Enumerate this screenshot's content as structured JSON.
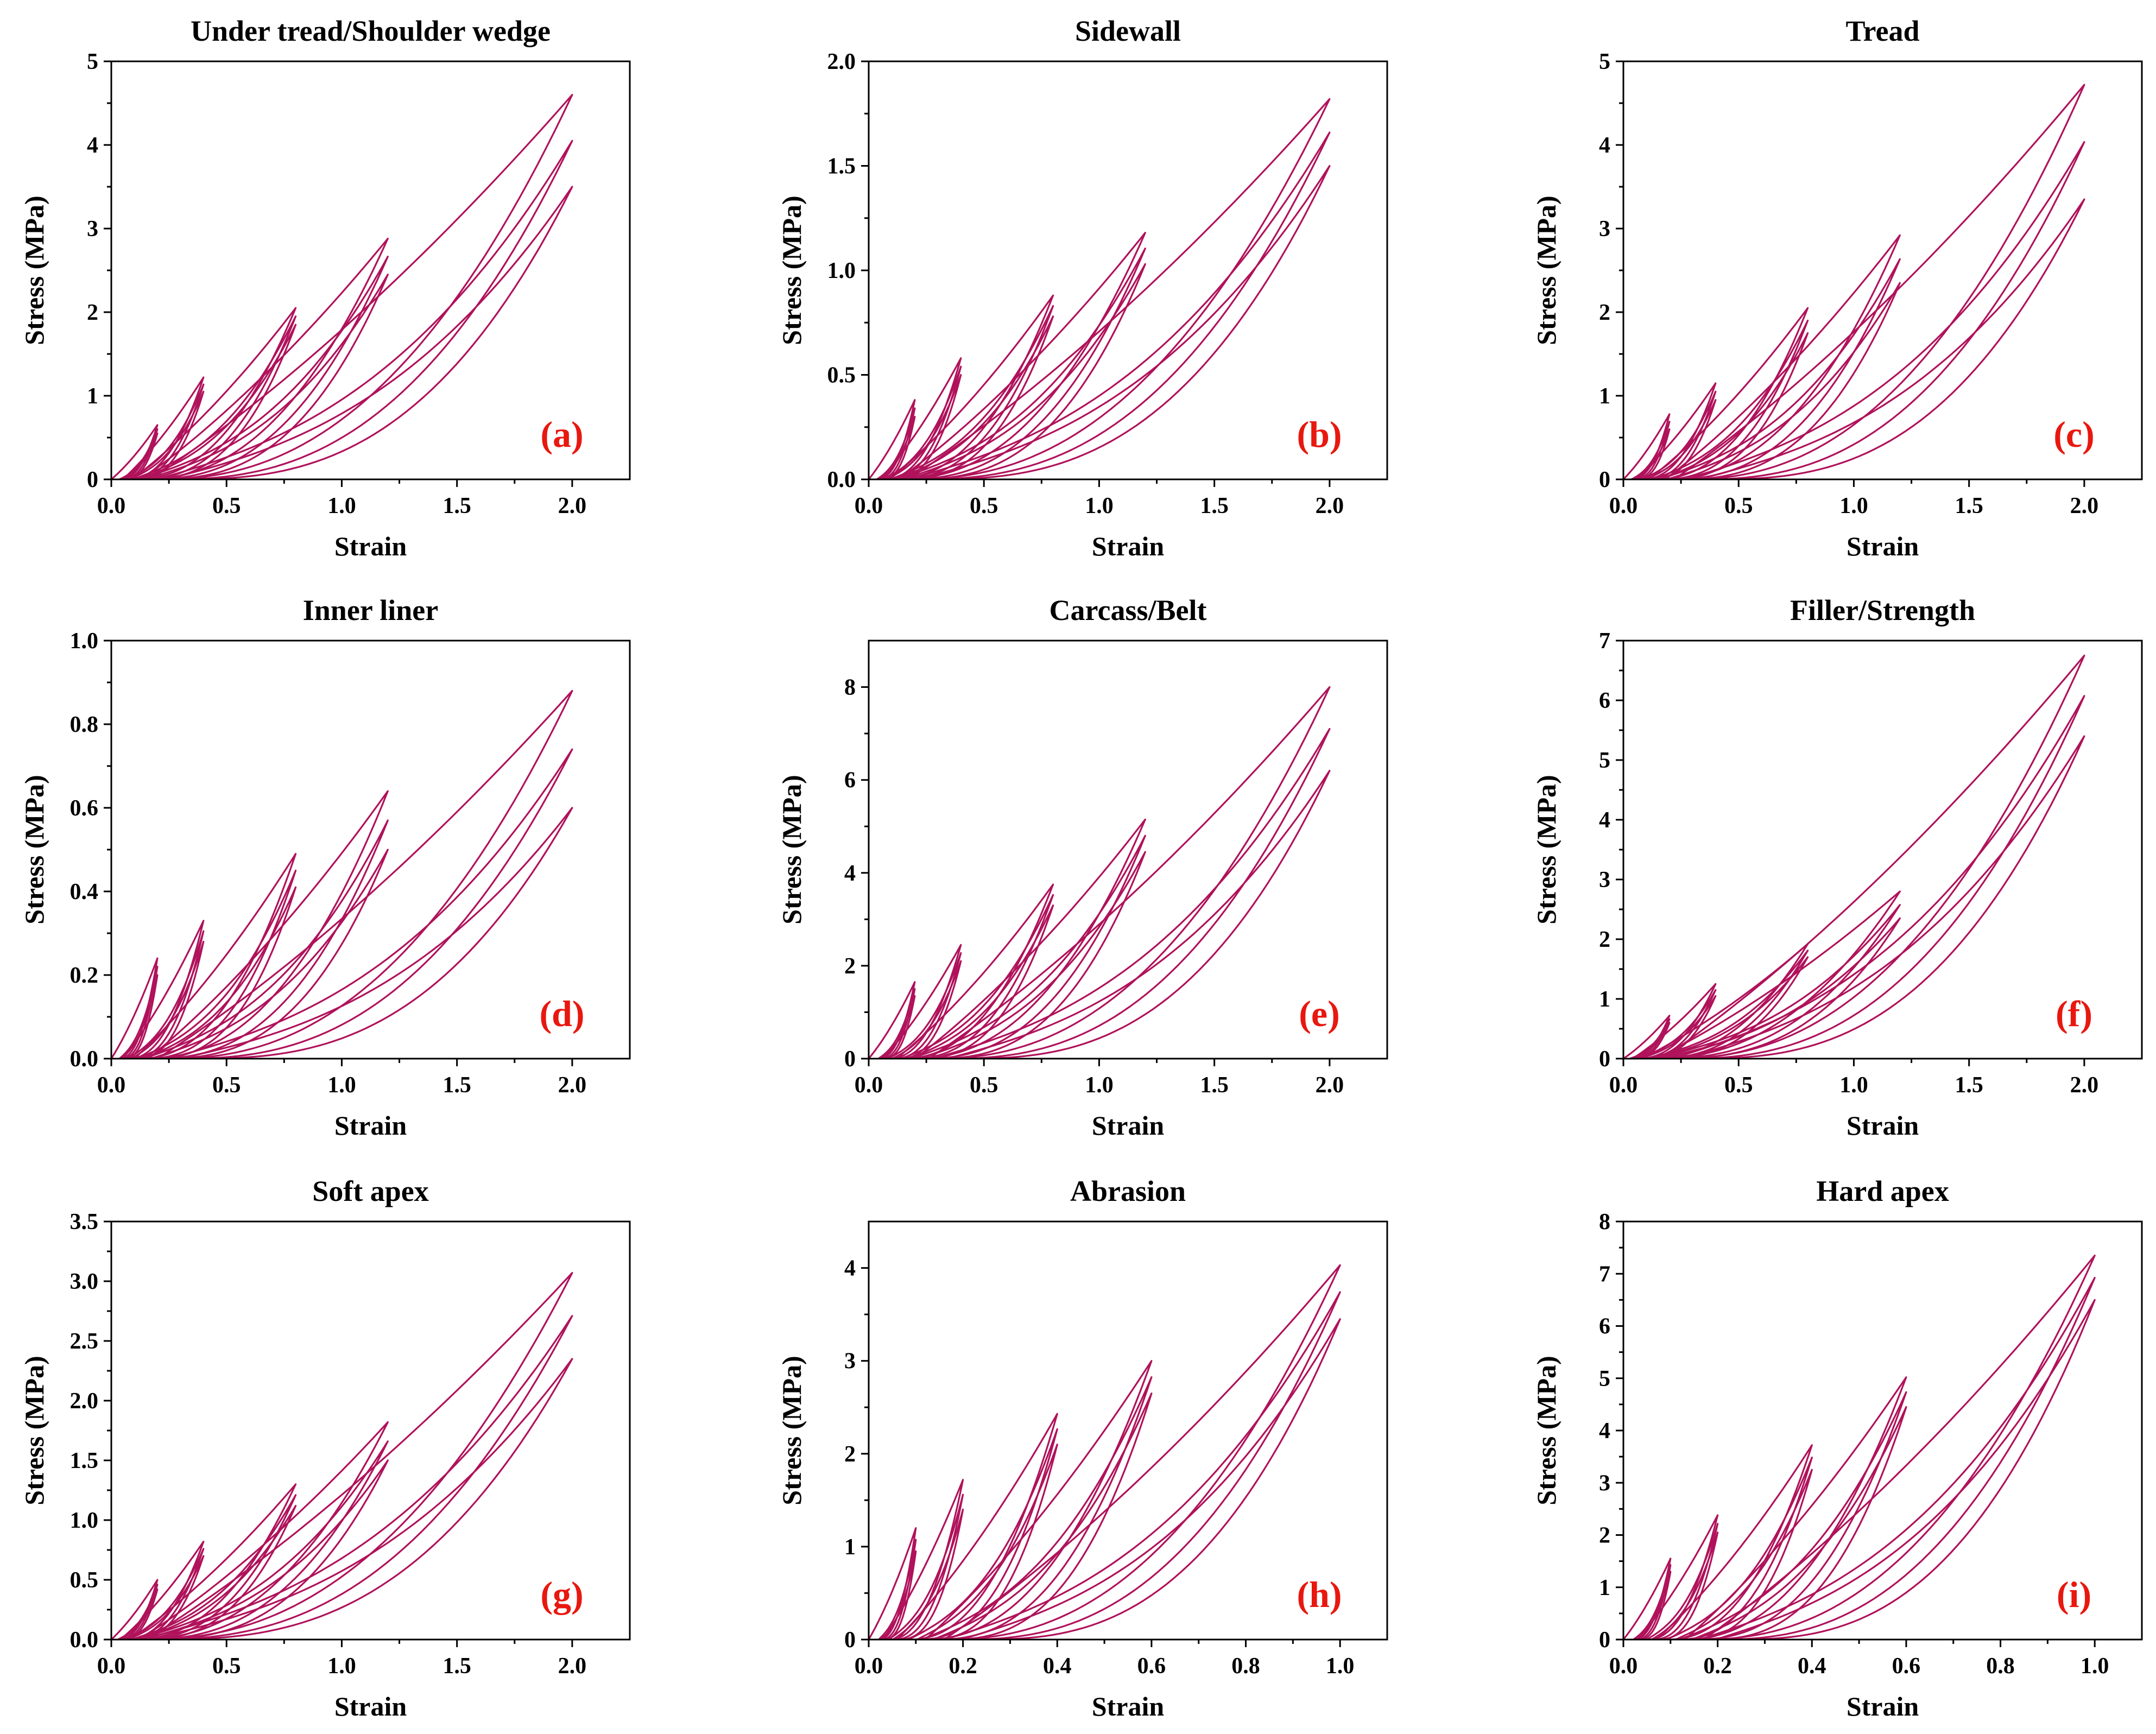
{
  "figure": {
    "curve_color": "#B0125B",
    "panel_label_color": "#E8180F"
  },
  "chart_data": [
    {
      "type": "line",
      "panel": "(a)",
      "title": "Under tread/Shoulder wedge",
      "xlabel": "Strain",
      "ylabel": "Stress (MPa)",
      "xlim": [
        0,
        2.25
      ],
      "ylim": [
        0,
        5
      ],
      "xticks": [
        0,
        0.5,
        1.0,
        1.5,
        2.0
      ],
      "xtick_labels": [
        "0.0",
        "0.5",
        "1.0",
        "1.5",
        "2.0"
      ],
      "yticks": [
        0,
        1,
        2,
        3,
        4,
        5
      ],
      "ytick_labels": [
        "0",
        "1",
        "2",
        "3",
        "4",
        "5"
      ],
      "loops": [
        {
          "strain_max": 0.2,
          "peak_first": 0.65,
          "peak_last": 0.55,
          "residual": 0.05
        },
        {
          "strain_max": 0.4,
          "peak_first": 1.22,
          "peak_last": 1.05,
          "residual": 0.09
        },
        {
          "strain_max": 0.8,
          "peak_first": 2.05,
          "peak_last": 1.85,
          "residual": 0.13
        },
        {
          "strain_max": 1.2,
          "peak_first": 2.88,
          "peak_last": 2.45,
          "residual": 0.17
        },
        {
          "strain_max": 2.0,
          "peak_first": 4.6,
          "peak_last": 3.5,
          "residual": 0.28
        }
      ]
    },
    {
      "type": "line",
      "panel": "(b)",
      "title": "Sidewall",
      "xlabel": "Strain",
      "ylabel": "Stress (MPa)",
      "xlim": [
        0,
        2.25
      ],
      "ylim": [
        0,
        2.0
      ],
      "xticks": [
        0,
        0.5,
        1.0,
        1.5,
        2.0
      ],
      "xtick_labels": [
        "0.0",
        "0.5",
        "1.0",
        "1.5",
        "2.0"
      ],
      "yticks": [
        0,
        0.5,
        1.0,
        1.5,
        2.0
      ],
      "ytick_labels": [
        "0.0",
        "0.5",
        "1.0",
        "1.5",
        "2.0"
      ],
      "loops": [
        {
          "strain_max": 0.2,
          "peak_first": 0.38,
          "peak_last": 0.3,
          "residual": 0.05
        },
        {
          "strain_max": 0.4,
          "peak_first": 0.58,
          "peak_last": 0.5,
          "residual": 0.09
        },
        {
          "strain_max": 0.8,
          "peak_first": 0.88,
          "peak_last": 0.78,
          "residual": 0.13
        },
        {
          "strain_max": 1.2,
          "peak_first": 1.18,
          "peak_last": 1.03,
          "residual": 0.17
        },
        {
          "strain_max": 2.0,
          "peak_first": 1.82,
          "peak_last": 1.5,
          "residual": 0.25
        }
      ]
    },
    {
      "type": "line",
      "panel": "(c)",
      "title": "Tread",
      "xlabel": "Strain",
      "ylabel": "Stress (MPa)",
      "xlim": [
        0,
        2.25
      ],
      "ylim": [
        0,
        5
      ],
      "xticks": [
        0,
        0.5,
        1.0,
        1.5,
        2.0
      ],
      "xtick_labels": [
        "0.0",
        "0.5",
        "1.0",
        "1.5",
        "2.0"
      ],
      "yticks": [
        0,
        1,
        2,
        3,
        4,
        5
      ],
      "ytick_labels": [
        "0",
        "1",
        "2",
        "3",
        "4",
        "5"
      ],
      "loops": [
        {
          "strain_max": 0.2,
          "peak_first": 0.78,
          "peak_last": 0.6,
          "residual": 0.05
        },
        {
          "strain_max": 0.4,
          "peak_first": 1.15,
          "peak_last": 0.95,
          "residual": 0.11
        },
        {
          "strain_max": 0.8,
          "peak_first": 2.05,
          "peak_last": 1.75,
          "residual": 0.18
        },
        {
          "strain_max": 1.2,
          "peak_first": 2.92,
          "peak_last": 2.35,
          "residual": 0.22
        },
        {
          "strain_max": 2.0,
          "peak_first": 4.72,
          "peak_last": 3.35,
          "residual": 0.38
        }
      ]
    },
    {
      "type": "line",
      "panel": "(d)",
      "title": "Inner liner",
      "xlabel": "Strain",
      "ylabel": "Stress (MPa)",
      "xlim": [
        0,
        2.25
      ],
      "ylim": [
        0,
        1.0
      ],
      "xticks": [
        0,
        0.5,
        1.0,
        1.5,
        2.0
      ],
      "xtick_labels": [
        "0.0",
        "0.5",
        "1.0",
        "1.5",
        "2.0"
      ],
      "yticks": [
        0,
        0.2,
        0.4,
        0.6,
        0.8,
        1.0
      ],
      "ytick_labels": [
        "0.0",
        "0.2",
        "0.4",
        "0.6",
        "0.8",
        "1.0"
      ],
      "loops": [
        {
          "strain_max": 0.2,
          "peak_first": 0.24,
          "peak_last": 0.2,
          "residual": 0.05
        },
        {
          "strain_max": 0.4,
          "peak_first": 0.33,
          "peak_last": 0.28,
          "residual": 0.1
        },
        {
          "strain_max": 0.8,
          "peak_first": 0.49,
          "peak_last": 0.41,
          "residual": 0.16
        },
        {
          "strain_max": 1.2,
          "peak_first": 0.64,
          "peak_last": 0.5,
          "residual": 0.2
        },
        {
          "strain_max": 2.0,
          "peak_first": 0.88,
          "peak_last": 0.6,
          "residual": 0.35
        }
      ]
    },
    {
      "type": "line",
      "panel": "(e)",
      "title": "Carcass/Belt",
      "xlabel": "Strain",
      "ylabel": "Stress (MPa)",
      "xlim": [
        0,
        2.25
      ],
      "ylim": [
        0,
        9
      ],
      "xticks": [
        0,
        0.5,
        1.0,
        1.5,
        2.0
      ],
      "xtick_labels": [
        "0.0",
        "0.5",
        "1.0",
        "1.5",
        "2.0"
      ],
      "yticks": [
        0,
        2,
        4,
        6,
        8
      ],
      "ytick_labels": [
        "0",
        "2",
        "4",
        "6",
        "8"
      ],
      "loops": [
        {
          "strain_max": 0.2,
          "peak_first": 1.65,
          "peak_last": 1.35,
          "residual": 0.06
        },
        {
          "strain_max": 0.4,
          "peak_first": 2.45,
          "peak_last": 2.1,
          "residual": 0.12
        },
        {
          "strain_max": 0.8,
          "peak_first": 3.75,
          "peak_last": 3.3,
          "residual": 0.2
        },
        {
          "strain_max": 1.2,
          "peak_first": 5.15,
          "peak_last": 4.45,
          "residual": 0.26
        },
        {
          "strain_max": 2.0,
          "peak_first": 8.0,
          "peak_last": 6.2,
          "residual": 0.4
        }
      ]
    },
    {
      "type": "line",
      "panel": "(f)",
      "title": "Filler/Strength",
      "xlabel": "Strain",
      "ylabel": "Stress (MPa)",
      "xlim": [
        0,
        2.25
      ],
      "ylim": [
        0,
        7
      ],
      "xticks": [
        0,
        0.5,
        1.0,
        1.5,
        2.0
      ],
      "xtick_labels": [
        "0.0",
        "0.5",
        "1.0",
        "1.5",
        "2.0"
      ],
      "yticks": [
        0,
        1,
        2,
        3,
        4,
        5,
        6,
        7
      ],
      "ytick_labels": [
        "0",
        "1",
        "2",
        "3",
        "4",
        "5",
        "6",
        "7"
      ],
      "loops": [
        {
          "strain_max": 0.2,
          "peak_first": 0.72,
          "peak_last": 0.6,
          "residual": 0.04
        },
        {
          "strain_max": 0.4,
          "peak_first": 1.25,
          "peak_last": 1.05,
          "residual": 0.08
        },
        {
          "strain_max": 0.8,
          "peak_first": 1.92,
          "peak_last": 1.7,
          "residual": 0.14
        },
        {
          "strain_max": 1.2,
          "peak_first": 2.8,
          "peak_last": 2.35,
          "residual": 0.17
        },
        {
          "strain_max": 2.0,
          "peak_first": 6.75,
          "peak_last": 5.4,
          "residual": 0.3
        }
      ]
    },
    {
      "type": "line",
      "panel": "(g)",
      "title": "Soft apex",
      "xlabel": "Strain",
      "ylabel": "Stress (MPa)",
      "xlim": [
        0,
        2.25
      ],
      "ylim": [
        0,
        3.5
      ],
      "xticks": [
        0,
        0.5,
        1.0,
        1.5,
        2.0
      ],
      "xtick_labels": [
        "0.0",
        "0.5",
        "1.0",
        "1.5",
        "2.0"
      ],
      "yticks": [
        0,
        0.5,
        1.0,
        1.5,
        2.0,
        2.5,
        3.0,
        3.5
      ],
      "ytick_labels": [
        "0.0",
        "0.5",
        "1.0",
        "1.5",
        "2.0",
        "2.5",
        "3.0",
        "3.5"
      ],
      "loops": [
        {
          "strain_max": 0.2,
          "peak_first": 0.5,
          "peak_last": 0.42,
          "residual": 0.04
        },
        {
          "strain_max": 0.4,
          "peak_first": 0.82,
          "peak_last": 0.7,
          "residual": 0.08
        },
        {
          "strain_max": 0.8,
          "peak_first": 1.3,
          "peak_last": 1.12,
          "residual": 0.12
        },
        {
          "strain_max": 1.2,
          "peak_first": 1.82,
          "peak_last": 1.5,
          "residual": 0.15
        },
        {
          "strain_max": 2.0,
          "peak_first": 3.07,
          "peak_last": 2.35,
          "residual": 0.19
        }
      ]
    },
    {
      "type": "line",
      "panel": "(h)",
      "title": "Abrasion",
      "xlabel": "Strain",
      "ylabel": "Stress (MPa)",
      "xlim": [
        0,
        1.1
      ],
      "ylim": [
        0,
        4.5
      ],
      "xticks": [
        0,
        0.2,
        0.4,
        0.6,
        0.8,
        1.0
      ],
      "xtick_labels": [
        "0.0",
        "0.2",
        "0.4",
        "0.6",
        "0.8",
        "1.0"
      ],
      "yticks": [
        0,
        1,
        2,
        3,
        4
      ],
      "ytick_labels": [
        "0",
        "1",
        "2",
        "3",
        "4"
      ],
      "loops": [
        {
          "strain_max": 0.1,
          "peak_first": 1.2,
          "peak_last": 0.95,
          "residual": 0.03
        },
        {
          "strain_max": 0.2,
          "peak_first": 1.72,
          "peak_last": 1.4,
          "residual": 0.06
        },
        {
          "strain_max": 0.4,
          "peak_first": 2.43,
          "peak_last": 2.1,
          "residual": 0.12
        },
        {
          "strain_max": 0.6,
          "peak_first": 3.0,
          "peak_last": 2.65,
          "residual": 0.16
        },
        {
          "strain_max": 1.0,
          "peak_first": 4.03,
          "peak_last": 3.45,
          "residual": 0.23
        }
      ]
    },
    {
      "type": "line",
      "panel": "(i)",
      "title": "Hard apex",
      "xlabel": "Strain",
      "ylabel": "Stress (MPa)",
      "xlim": [
        0,
        1.1
      ],
      "ylim": [
        0,
        8
      ],
      "xticks": [
        0,
        0.2,
        0.4,
        0.6,
        0.8,
        1.0
      ],
      "xtick_labels": [
        "0.0",
        "0.2",
        "0.4",
        "0.6",
        "0.8",
        "1.0"
      ],
      "yticks": [
        0,
        1,
        2,
        3,
        4,
        5,
        6,
        7,
        8
      ],
      "ytick_labels": [
        "0",
        "1",
        "2",
        "3",
        "4",
        "5",
        "6",
        "7",
        "8"
      ],
      "loops": [
        {
          "strain_max": 0.1,
          "peak_first": 1.55,
          "peak_last": 1.3,
          "residual": 0.03
        },
        {
          "strain_max": 0.2,
          "peak_first": 2.38,
          "peak_last": 2.05,
          "residual": 0.07
        },
        {
          "strain_max": 0.4,
          "peak_first": 3.72,
          "peak_last": 3.25,
          "residual": 0.13
        },
        {
          "strain_max": 0.6,
          "peak_first": 5.02,
          "peak_last": 4.45,
          "residual": 0.17
        },
        {
          "strain_max": 1.0,
          "peak_first": 7.35,
          "peak_last": 6.5,
          "residual": 0.23
        }
      ]
    }
  ]
}
